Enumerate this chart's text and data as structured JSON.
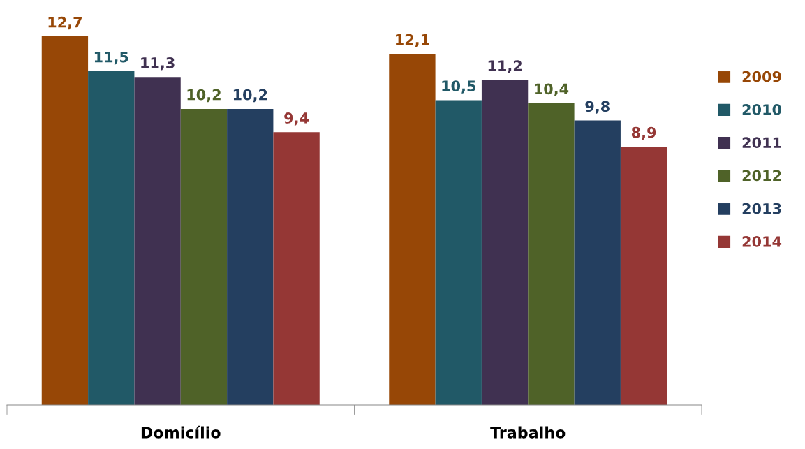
{
  "chart_data": {
    "type": "bar",
    "categories": [
      "Domicílio",
      "Trabalho"
    ],
    "series": [
      {
        "name": "2009",
        "color": "#974706",
        "values": [
          12.7,
          12.1
        ],
        "value_labels": [
          "12,7",
          "12,1"
        ]
      },
      {
        "name": "2010",
        "color": "#215967",
        "values": [
          11.5,
          10.5
        ],
        "value_labels": [
          "11,5",
          "10,5"
        ]
      },
      {
        "name": "2011",
        "color": "#403151",
        "values": [
          11.3,
          11.2
        ],
        "value_labels": [
          "11,3",
          "11,2"
        ]
      },
      {
        "name": "2012",
        "color": "#4f6228",
        "values": [
          10.2,
          10.4
        ],
        "value_labels": [
          "10,2",
          "10,4"
        ]
      },
      {
        "name": "2013",
        "color": "#243f60",
        "values": [
          10.2,
          9.8
        ],
        "value_labels": [
          "10,2",
          "9,8"
        ]
      },
      {
        "name": "2014",
        "color": "#953735",
        "values": [
          9.4,
          8.9
        ],
        "value_labels": [
          "9,4",
          "8,9"
        ]
      }
    ],
    "legend": "right"
  }
}
